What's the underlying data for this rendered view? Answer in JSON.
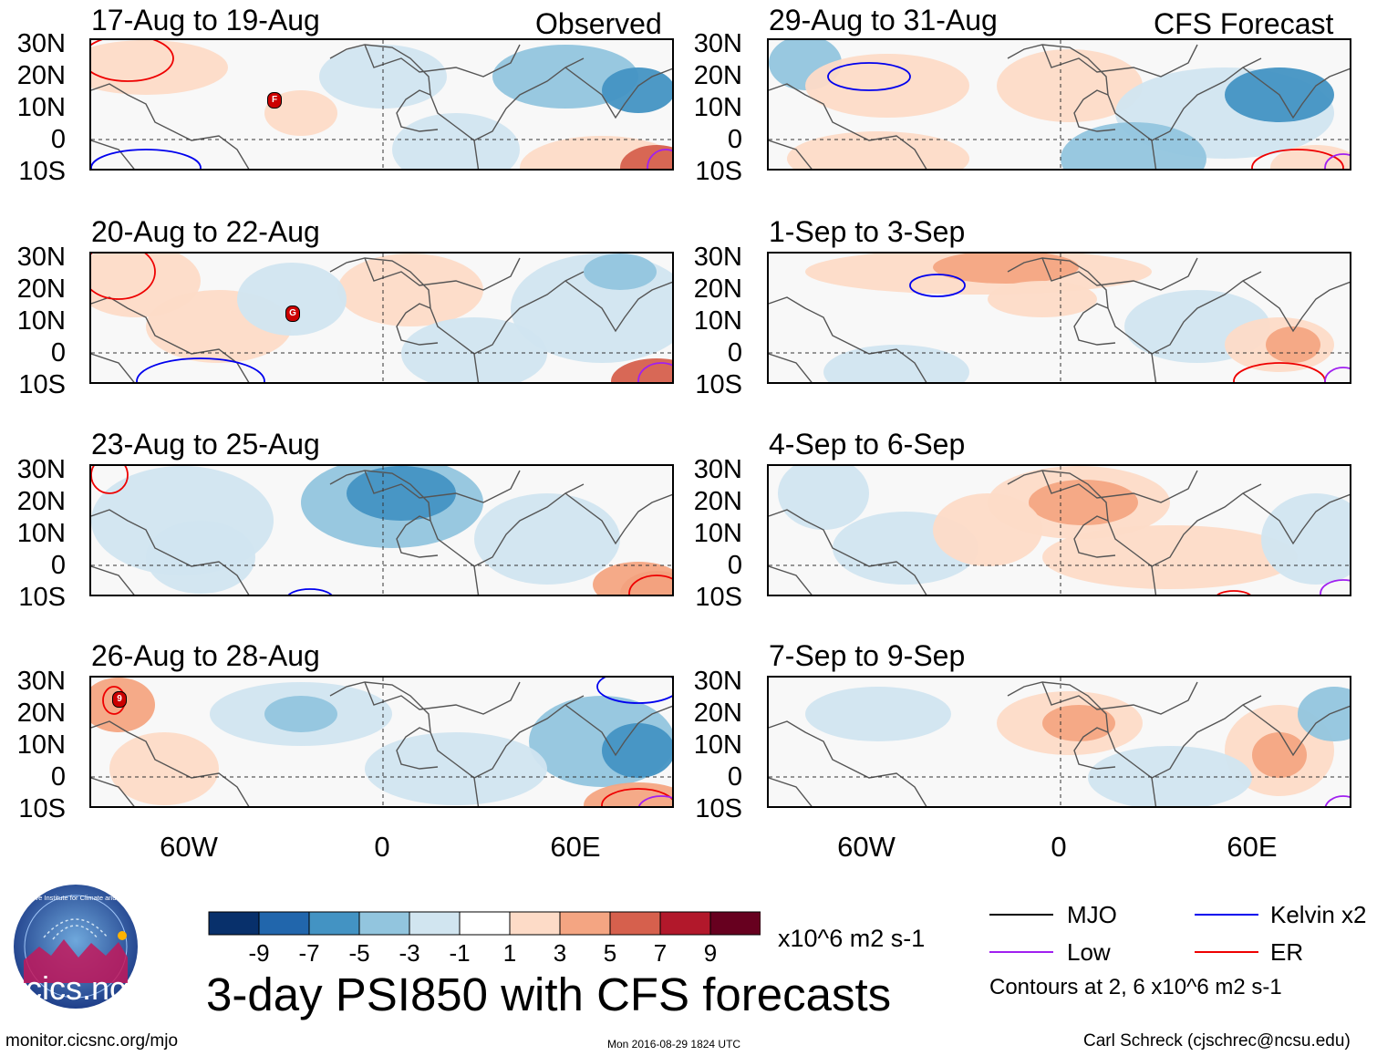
{
  "panels": [
    {
      "title": "17-Aug to 19-Aug",
      "tag": "Observed"
    },
    {
      "title": "29-Aug to 31-Aug",
      "tag": "CFS Forecast"
    },
    {
      "title": "20-Aug to 22-Aug",
      "tag": ""
    },
    {
      "title": "1-Sep to 3-Sep",
      "tag": ""
    },
    {
      "title": "23-Aug to 25-Aug",
      "tag": ""
    },
    {
      "title": "4-Sep to 6-Sep",
      "tag": ""
    },
    {
      "title": "26-Aug to 28-Aug",
      "tag": ""
    },
    {
      "title": "7-Sep to 9-Sep",
      "tag": ""
    }
  ],
  "lat_labels": [
    "30N",
    "20N",
    "10N",
    "0",
    "10S"
  ],
  "lon_labels": [
    "60W",
    "0",
    "60E"
  ],
  "storm_markers": [
    "F",
    "G",
    "9"
  ],
  "colorbar": {
    "ticks": [
      "-9",
      "-7",
      "-5",
      "-3",
      "-1",
      "1",
      "3",
      "5",
      "7",
      "9"
    ],
    "units": "x10^6 m2 s-1",
    "colors": [
      "#08306b",
      "#2166ac",
      "#4393c3",
      "#92c5de",
      "#d1e5f0",
      "#ffffff",
      "#fddbc7",
      "#f4a582",
      "#d6604d",
      "#b2182b",
      "#67001f"
    ]
  },
  "legend": {
    "items": [
      {
        "label": "MJO",
        "color": "#000000"
      },
      {
        "label": "Kelvin x2",
        "color": "#0000ee"
      },
      {
        "label": "Low",
        "color": "#a020f0"
      },
      {
        "label": "ER",
        "color": "#ee0000"
      }
    ],
    "note": "Contours at 2, 6 x10^6 m2 s-1"
  },
  "main_title": "3-day PSI850 with CFS forecasts",
  "logo": {
    "text": "cics.nc",
    "ring_text": "Cooperative Institute for Climate and Satellites"
  },
  "footer": {
    "left": "monitor.cicsnc.org/mjo",
    "center": "Mon 2016-08-29 1824 UTC",
    "right": "Carl Schreck (cjschrec@ncsu.edu)"
  }
}
